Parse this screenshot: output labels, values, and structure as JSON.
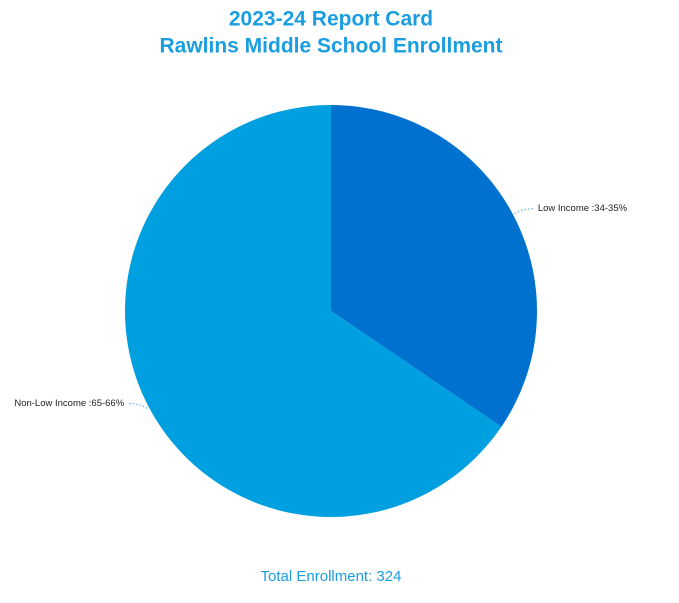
{
  "chart_data": {
    "type": "pie",
    "title": "2023-24 Report Card",
    "subtitle": "Rawlins Middle School Enrollment",
    "values": [
      34.5,
      65.5
    ],
    "value_labels": [
      "Low Income :34-35%",
      "Non-Low Income :65-66%"
    ],
    "colors": [
      "#0071ce",
      "#00a0e0"
    ],
    "annotation": "Total Enrollment: 324"
  }
}
